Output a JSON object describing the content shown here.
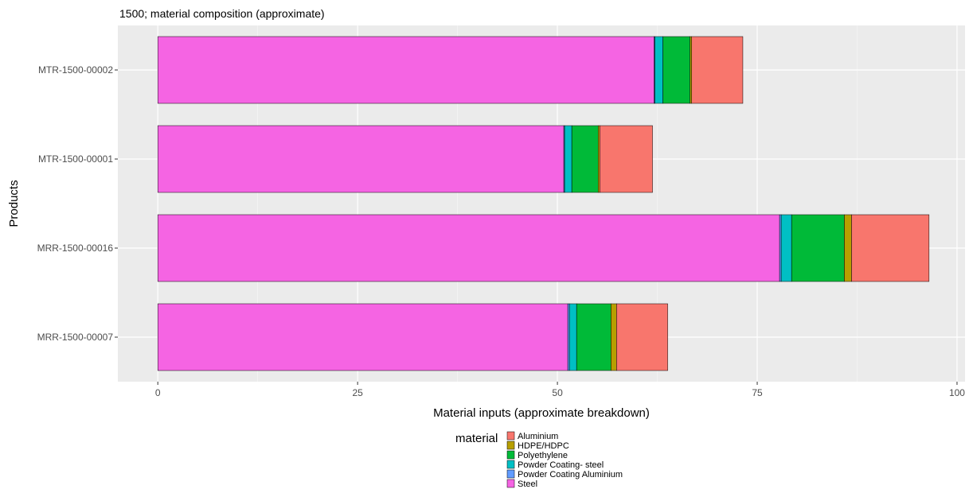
{
  "chart_data": {
    "type": "bar",
    "orientation": "horizontal",
    "stacked": true,
    "title": "1500; material composition (approximate)",
    "xlabel": "Material inputs (approximate breakdown)",
    "ylabel": "Products",
    "xlim": [
      -5,
      101
    ],
    "xticks": [
      0,
      25,
      50,
      75,
      100
    ],
    "grid": true,
    "legend": {
      "title": "material",
      "position": "bottom"
    },
    "categories": [
      "MRR-1500-00007",
      "MRR-1500-00016",
      "MTR-1500-00001",
      "MTR-1500-00002"
    ],
    "stack_order": [
      "Steel",
      "Powder Coating Aluminium",
      "Powder Coating- steel",
      "Polyethylene",
      "HDPE/HDPC",
      "Aluminium"
    ],
    "series": [
      {
        "name": "Aluminium",
        "color": "#F8766D",
        "values": [
          6.4,
          9.7,
          6.6,
          6.4
        ]
      },
      {
        "name": "HDPE/HDPC",
        "color": "#B79F00",
        "values": [
          0.7,
          0.9,
          0.2,
          0.2
        ]
      },
      {
        "name": "Polyethylene",
        "color": "#00BA38",
        "values": [
          4.3,
          6.6,
          3.3,
          3.4
        ]
      },
      {
        "name": "Powder Coating- steel",
        "color": "#00BFC4",
        "values": [
          0.9,
          1.3,
          0.9,
          1.0
        ]
      },
      {
        "name": "Powder Coating Aluminium",
        "color": "#619CFF",
        "values": [
          0.2,
          0.2,
          0.1,
          0.1
        ]
      },
      {
        "name": "Steel",
        "color": "#F564E3",
        "values": [
          51.3,
          77.8,
          50.8,
          62.1
        ]
      }
    ]
  }
}
